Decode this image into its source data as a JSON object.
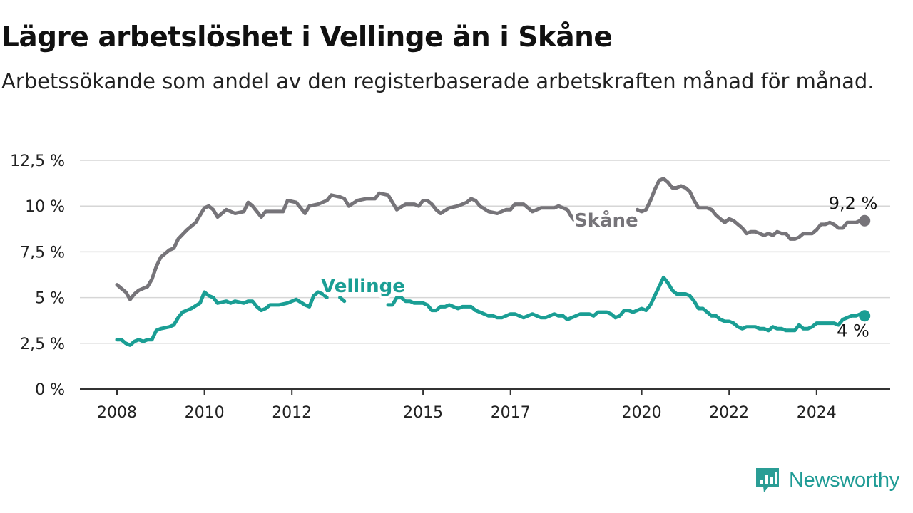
{
  "header": {
    "title": "Lägre arbetslöshet i Vellinge än i Skåne",
    "subtitle": "Arbetssökande som andel av den registerbaserade arbetskraften månad för månad."
  },
  "brand": {
    "name": "Newsworthy",
    "icon": "newsworthy-logo-icon"
  },
  "colors": {
    "skane": "#767479",
    "vellinge": "#1a9e94",
    "grid": "#d6d6d6",
    "axis": "#333333",
    "brand": "#1f9b95"
  },
  "chart_data": {
    "type": "line",
    "x_unit": "year",
    "x_ticks": [
      2008,
      2010,
      2012,
      2015,
      2017,
      2020,
      2022,
      2024
    ],
    "x_tick_labels": [
      "2008",
      "2010",
      "2012",
      "2015",
      "2017",
      "2020",
      "2022",
      "2024"
    ],
    "xlim": [
      2007.2,
      2025.7
    ],
    "ylim": [
      0,
      12.5
    ],
    "y_ticks": [
      0,
      2.5,
      5,
      7.5,
      10,
      12.5
    ],
    "y_tick_labels": [
      "0 %",
      "2,5 %",
      "5 %",
      "7,5 %",
      "10 %",
      "12,5 %"
    ],
    "grid": "horizontal",
    "series": [
      {
        "name": "Skåne",
        "color_key": "skane",
        "end_label": "9,2 %",
        "points": [
          [
            2008.0,
            5.7
          ],
          [
            2008.1,
            5.5
          ],
          [
            2008.2,
            5.3
          ],
          [
            2008.3,
            4.9
          ],
          [
            2008.4,
            5.2
          ],
          [
            2008.5,
            5.4
          ],
          [
            2008.7,
            5.6
          ],
          [
            2008.8,
            6.0
          ],
          [
            2008.9,
            6.7
          ],
          [
            2009.0,
            7.2
          ],
          [
            2009.2,
            7.6
          ],
          [
            2009.3,
            7.7
          ],
          [
            2009.4,
            8.2
          ],
          [
            2009.6,
            8.7
          ],
          [
            2009.8,
            9.1
          ],
          [
            2010.0,
            9.9
          ],
          [
            2010.1,
            10.0
          ],
          [
            2010.2,
            9.8
          ],
          [
            2010.3,
            9.4
          ],
          [
            2010.5,
            9.8
          ],
          [
            2010.7,
            9.6
          ],
          [
            2010.9,
            9.7
          ],
          [
            2011.0,
            10.2
          ],
          [
            2011.1,
            10.0
          ],
          [
            2011.3,
            9.4
          ],
          [
            2011.4,
            9.7
          ],
          [
            2011.6,
            9.7
          ],
          [
            2011.8,
            9.7
          ],
          [
            2011.9,
            10.3
          ],
          [
            2012.1,
            10.2
          ],
          [
            2012.2,
            9.9
          ],
          [
            2012.3,
            9.6
          ],
          [
            2012.4,
            10.0
          ],
          [
            2012.6,
            10.1
          ],
          [
            2012.8,
            10.3
          ],
          [
            2012.9,
            10.6
          ],
          [
            2013.1,
            10.5
          ],
          [
            2013.2,
            10.4
          ],
          [
            2013.3,
            10.0
          ],
          [
            2013.5,
            10.3
          ],
          [
            2013.7,
            10.4
          ],
          [
            2013.9,
            10.4
          ],
          [
            2014.0,
            10.7
          ],
          [
            2014.2,
            10.6
          ],
          [
            2014.3,
            10.2
          ],
          [
            2014.4,
            9.8
          ],
          [
            2014.6,
            10.1
          ],
          [
            2014.8,
            10.1
          ],
          [
            2014.9,
            10.0
          ],
          [
            2015.0,
            10.3
          ],
          [
            2015.1,
            10.3
          ],
          [
            2015.2,
            10.1
          ],
          [
            2015.3,
            9.8
          ],
          [
            2015.4,
            9.6
          ],
          [
            2015.6,
            9.9
          ],
          [
            2015.8,
            10.0
          ],
          [
            2016.0,
            10.2
          ],
          [
            2016.1,
            10.4
          ],
          [
            2016.2,
            10.3
          ],
          [
            2016.3,
            10.0
          ],
          [
            2016.5,
            9.7
          ],
          [
            2016.7,
            9.6
          ],
          [
            2016.9,
            9.8
          ],
          [
            2017.0,
            9.8
          ],
          [
            2017.1,
            10.1
          ],
          [
            2017.3,
            10.1
          ],
          [
            2017.4,
            9.9
          ],
          [
            2017.5,
            9.7
          ],
          [
            2017.6,
            9.8
          ],
          [
            2017.7,
            9.9
          ],
          [
            2017.9,
            9.9
          ],
          [
            2018.0,
            9.9
          ],
          [
            2018.1,
            10.0
          ],
          [
            2018.3,
            9.8
          ],
          [
            2018.4,
            9.4
          ],
          [
            2018.5,
            9.1
          ],
          null,
          [
            2019.9,
            9.8
          ],
          [
            2020.0,
            9.7
          ],
          [
            2020.1,
            9.8
          ],
          [
            2020.2,
            10.3
          ],
          [
            2020.3,
            10.9
          ],
          [
            2020.4,
            11.4
          ],
          [
            2020.5,
            11.5
          ],
          [
            2020.6,
            11.3
          ],
          [
            2020.7,
            11.0
          ],
          [
            2020.8,
            11.0
          ],
          [
            2020.9,
            11.1
          ],
          [
            2021.0,
            11.0
          ],
          [
            2021.1,
            10.8
          ],
          [
            2021.2,
            10.3
          ],
          [
            2021.3,
            9.9
          ],
          [
            2021.5,
            9.9
          ],
          [
            2021.6,
            9.8
          ],
          [
            2021.7,
            9.5
          ],
          [
            2021.8,
            9.3
          ],
          [
            2021.9,
            9.1
          ],
          [
            2022.0,
            9.3
          ],
          [
            2022.1,
            9.2
          ],
          [
            2022.2,
            9.0
          ],
          [
            2022.3,
            8.8
          ],
          [
            2022.4,
            8.5
          ],
          [
            2022.5,
            8.6
          ],
          [
            2022.6,
            8.6
          ],
          [
            2022.7,
            8.5
          ],
          [
            2022.8,
            8.4
          ],
          [
            2022.9,
            8.5
          ],
          [
            2023.0,
            8.4
          ],
          [
            2023.1,
            8.6
          ],
          [
            2023.2,
            8.5
          ],
          [
            2023.3,
            8.5
          ],
          [
            2023.4,
            8.2
          ],
          [
            2023.5,
            8.2
          ],
          [
            2023.6,
            8.3
          ],
          [
            2023.7,
            8.5
          ],
          [
            2023.8,
            8.5
          ],
          [
            2023.9,
            8.5
          ],
          [
            2024.0,
            8.7
          ],
          [
            2024.1,
            9.0
          ],
          [
            2024.2,
            9.0
          ],
          [
            2024.3,
            9.1
          ],
          [
            2024.4,
            9.0
          ],
          [
            2024.5,
            8.8
          ],
          [
            2024.6,
            8.8
          ],
          [
            2024.7,
            9.1
          ],
          [
            2024.8,
            9.1
          ],
          [
            2024.9,
            9.1
          ],
          [
            2025.0,
            9.2
          ],
          [
            2025.1,
            9.2
          ]
        ]
      },
      {
        "name": "Vellinge",
        "color_key": "vellinge",
        "end_label": "4 %",
        "points": [
          [
            2008.0,
            2.7
          ],
          [
            2008.1,
            2.7
          ],
          [
            2008.2,
            2.5
          ],
          [
            2008.3,
            2.4
          ],
          [
            2008.4,
            2.6
          ],
          [
            2008.5,
            2.7
          ],
          [
            2008.6,
            2.6
          ],
          [
            2008.7,
            2.7
          ],
          [
            2008.8,
            2.7
          ],
          [
            2008.9,
            3.2
          ],
          [
            2009.0,
            3.3
          ],
          [
            2009.2,
            3.4
          ],
          [
            2009.3,
            3.5
          ],
          [
            2009.4,
            3.9
          ],
          [
            2009.5,
            4.2
          ],
          [
            2009.7,
            4.4
          ],
          [
            2009.9,
            4.7
          ],
          [
            2010.0,
            5.3
          ],
          [
            2010.1,
            5.1
          ],
          [
            2010.2,
            5.0
          ],
          [
            2010.3,
            4.7
          ],
          [
            2010.5,
            4.8
          ],
          [
            2010.6,
            4.7
          ],
          [
            2010.7,
            4.8
          ],
          [
            2010.9,
            4.7
          ],
          [
            2011.0,
            4.8
          ],
          [
            2011.1,
            4.8
          ],
          [
            2011.2,
            4.5
          ],
          [
            2011.3,
            4.3
          ],
          [
            2011.4,
            4.4
          ],
          [
            2011.5,
            4.6
          ],
          [
            2011.6,
            4.6
          ],
          [
            2011.7,
            4.6
          ],
          [
            2011.9,
            4.7
          ],
          [
            2012.1,
            4.9
          ],
          [
            2012.3,
            4.6
          ],
          [
            2012.4,
            4.5
          ],
          [
            2012.5,
            5.1
          ],
          [
            2012.6,
            5.3
          ],
          [
            2012.7,
            5.2
          ],
          [
            2012.8,
            5.0
          ],
          null,
          [
            2013.1,
            5.0
          ],
          [
            2013.2,
            4.8
          ],
          null,
          [
            2014.2,
            4.6
          ],
          [
            2014.3,
            4.6
          ],
          [
            2014.4,
            5.0
          ],
          [
            2014.5,
            5.0
          ],
          [
            2014.6,
            4.8
          ],
          [
            2014.7,
            4.8
          ],
          [
            2014.8,
            4.7
          ],
          [
            2014.9,
            4.7
          ],
          [
            2015.0,
            4.7
          ],
          [
            2015.1,
            4.6
          ],
          [
            2015.2,
            4.3
          ],
          [
            2015.3,
            4.3
          ],
          [
            2015.4,
            4.5
          ],
          [
            2015.5,
            4.5
          ],
          [
            2015.6,
            4.6
          ],
          [
            2015.7,
            4.5
          ],
          [
            2015.8,
            4.4
          ],
          [
            2015.9,
            4.5
          ],
          [
            2016.0,
            4.5
          ],
          [
            2016.1,
            4.5
          ],
          [
            2016.2,
            4.3
          ],
          [
            2016.3,
            4.2
          ],
          [
            2016.4,
            4.1
          ],
          [
            2016.5,
            4.0
          ],
          [
            2016.6,
            4.0
          ],
          [
            2016.7,
            3.9
          ],
          [
            2016.8,
            3.9
          ],
          [
            2016.9,
            4.0
          ],
          [
            2017.0,
            4.1
          ],
          [
            2017.1,
            4.1
          ],
          [
            2017.2,
            4.0
          ],
          [
            2017.3,
            3.9
          ],
          [
            2017.4,
            4.0
          ],
          [
            2017.5,
            4.1
          ],
          [
            2017.6,
            4.0
          ],
          [
            2017.7,
            3.9
          ],
          [
            2017.8,
            3.9
          ],
          [
            2017.9,
            4.0
          ],
          [
            2018.0,
            4.1
          ],
          [
            2018.1,
            4.0
          ],
          [
            2018.2,
            4.0
          ],
          [
            2018.3,
            3.8
          ],
          [
            2018.4,
            3.9
          ],
          [
            2018.5,
            4.0
          ],
          [
            2018.6,
            4.1
          ],
          [
            2018.7,
            4.1
          ],
          [
            2018.8,
            4.1
          ],
          [
            2018.9,
            4.0
          ],
          [
            2019.0,
            4.2
          ],
          [
            2019.1,
            4.2
          ],
          [
            2019.2,
            4.2
          ],
          [
            2019.3,
            4.1
          ],
          [
            2019.4,
            3.9
          ],
          [
            2019.5,
            4.0
          ],
          [
            2019.6,
            4.3
          ],
          [
            2019.7,
            4.3
          ],
          [
            2019.8,
            4.2
          ],
          [
            2019.9,
            4.3
          ],
          [
            2020.0,
            4.4
          ],
          [
            2020.1,
            4.3
          ],
          [
            2020.2,
            4.6
          ],
          [
            2020.3,
            5.1
          ],
          [
            2020.4,
            5.6
          ],
          [
            2020.5,
            6.1
          ],
          [
            2020.6,
            5.8
          ],
          [
            2020.7,
            5.4
          ],
          [
            2020.8,
            5.2
          ],
          [
            2020.9,
            5.2
          ],
          [
            2021.0,
            5.2
          ],
          [
            2021.1,
            5.1
          ],
          [
            2021.2,
            4.8
          ],
          [
            2021.3,
            4.4
          ],
          [
            2021.4,
            4.4
          ],
          [
            2021.5,
            4.2
          ],
          [
            2021.6,
            4.0
          ],
          [
            2021.7,
            4.0
          ],
          [
            2021.8,
            3.8
          ],
          [
            2021.9,
            3.7
          ],
          [
            2022.0,
            3.7
          ],
          [
            2022.1,
            3.6
          ],
          [
            2022.2,
            3.4
          ],
          [
            2022.3,
            3.3
          ],
          [
            2022.4,
            3.4
          ],
          [
            2022.5,
            3.4
          ],
          [
            2022.6,
            3.4
          ],
          [
            2022.7,
            3.3
          ],
          [
            2022.8,
            3.3
          ],
          [
            2022.9,
            3.2
          ],
          [
            2023.0,
            3.4
          ],
          [
            2023.1,
            3.3
          ],
          [
            2023.2,
            3.3
          ],
          [
            2023.3,
            3.2
          ],
          [
            2023.4,
            3.2
          ],
          [
            2023.5,
            3.2
          ],
          [
            2023.6,
            3.5
          ],
          [
            2023.7,
            3.3
          ],
          [
            2023.8,
            3.3
          ],
          [
            2023.9,
            3.4
          ],
          [
            2024.0,
            3.6
          ],
          [
            2024.2,
            3.6
          ],
          [
            2024.4,
            3.6
          ],
          [
            2024.5,
            3.5
          ],
          [
            2024.6,
            3.8
          ],
          [
            2024.8,
            4.0
          ],
          [
            2024.9,
            4.0
          ],
          [
            2025.0,
            4.1
          ],
          [
            2025.1,
            4.0
          ]
        ]
      }
    ]
  }
}
